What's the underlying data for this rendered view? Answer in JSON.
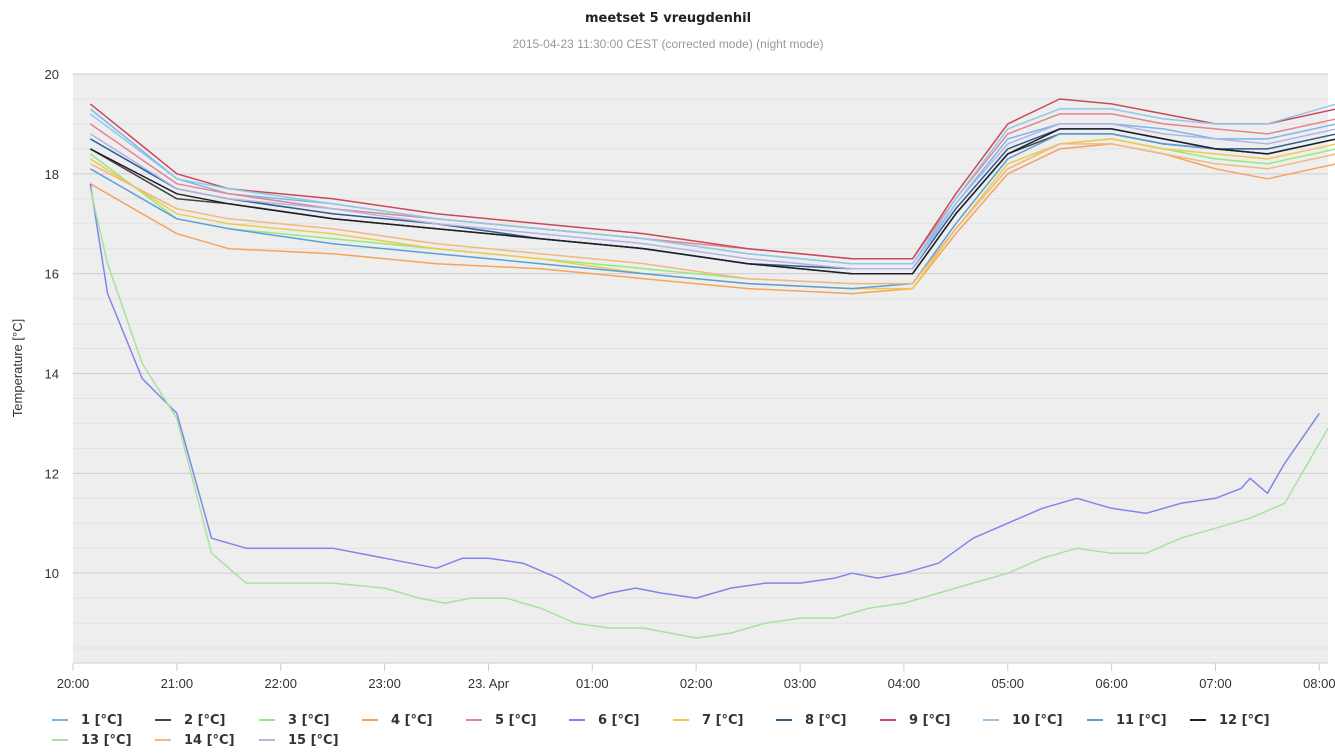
{
  "chart_data": {
    "type": "line",
    "title": "meetset 5 vreugdenhil",
    "subtitle": "2015-04-23 11:30:00 CEST (corrected mode) (night mode)",
    "ylabel": "Temperature [°C]",
    "xlabel": "",
    "ylim": [
      8.2,
      20
    ],
    "yticks": [
      10,
      12,
      14,
      16,
      18,
      20
    ],
    "xlim": [
      "2015-04-22T20:00",
      "2015-04-23T08:05"
    ],
    "xticks": [
      "2015-04-22T20:00",
      "2015-04-22T21:00",
      "2015-04-22T22:00",
      "2015-04-22T23:00",
      "2015-04-23T00:00",
      "2015-04-23T01:00",
      "2015-04-23T02:00",
      "2015-04-23T03:00",
      "2015-04-23T04:00",
      "2015-04-23T05:00",
      "2015-04-23T06:00",
      "2015-04-23T07:00",
      "2015-04-23T08:00"
    ],
    "xticklabels": [
      "20:00",
      "21:00",
      "22:00",
      "23:00",
      "23. Apr",
      "01:00",
      "02:00",
      "03:00",
      "04:00",
      "05:00",
      "06:00",
      "07:00",
      "08:00"
    ],
    "grid": true,
    "legend_position": "bottom",
    "series": [
      {
        "name": "1 [°C]",
        "color": "#7cb5ec",
        "x": [
          "2015-04-22T20:10",
          "2015-04-22T21:00",
          "2015-04-22T21:30",
          "2015-04-22T22:30",
          "2015-04-22T23:30",
          "2015-04-23T00:30",
          "2015-04-23T01:30",
          "2015-04-23T02:30",
          "2015-04-23T03:30",
          "2015-04-23T04:05",
          "2015-04-23T04:30",
          "2015-04-23T05:00",
          "2015-04-23T05:30",
          "2015-04-23T06:00",
          "2015-04-23T06:30",
          "2015-04-23T07:00",
          "2015-04-23T07:30",
          "2015-04-23T08:10"
        ],
        "y": [
          19.3,
          17.9,
          17.6,
          17.4,
          17.1,
          16.9,
          16.7,
          16.4,
          16.2,
          16.2,
          17.4,
          18.7,
          19.0,
          19.0,
          18.9,
          18.7,
          18.7,
          19.0
        ]
      },
      {
        "name": "2 [°C]",
        "color": "#434348",
        "x": [
          "2015-04-22T20:10",
          "2015-04-22T21:00",
          "2015-04-22T21:30",
          "2015-04-22T22:30",
          "2015-04-22T23:30",
          "2015-04-23T00:30",
          "2015-04-23T01:30",
          "2015-04-23T02:30",
          "2015-04-23T03:30",
          "2015-04-23T04:05",
          "2015-04-23T04:30",
          "2015-04-23T05:00",
          "2015-04-23T05:30",
          "2015-04-23T06:00",
          "2015-04-23T06:30",
          "2015-04-23T07:00",
          "2015-04-23T07:30",
          "2015-04-23T08:10"
        ],
        "y": [
          18.5,
          17.5,
          17.4,
          17.1,
          16.9,
          16.7,
          16.5,
          16.2,
          16.0,
          16.0,
          17.2,
          18.4,
          18.8,
          18.8,
          18.6,
          18.5,
          18.4,
          18.7
        ]
      },
      {
        "name": "3 [°C]",
        "color": "#90ed7d",
        "x": [
          "2015-04-22T20:10",
          "2015-04-22T21:00",
          "2015-04-22T21:30",
          "2015-04-22T22:30",
          "2015-04-22T23:30",
          "2015-04-23T00:30",
          "2015-04-23T01:30",
          "2015-04-23T02:30",
          "2015-04-23T03:30",
          "2015-04-23T04:05",
          "2015-04-23T04:30",
          "2015-04-23T05:00",
          "2015-04-23T05:30",
          "2015-04-23T06:00",
          "2015-04-23T06:30",
          "2015-04-23T07:00",
          "2015-04-23T07:30",
          "2015-04-23T08:10"
        ],
        "y": [
          18.4,
          17.1,
          16.9,
          16.7,
          16.5,
          16.3,
          16.1,
          15.9,
          15.8,
          15.8,
          16.9,
          18.1,
          18.6,
          18.7,
          18.5,
          18.3,
          18.2,
          18.5
        ]
      },
      {
        "name": "4 [°C]",
        "color": "#f7a35c",
        "x": [
          "2015-04-22T20:10",
          "2015-04-22T21:00",
          "2015-04-22T21:30",
          "2015-04-22T22:30",
          "2015-04-22T23:30",
          "2015-04-23T00:30",
          "2015-04-23T01:30",
          "2015-04-23T02:30",
          "2015-04-23T03:30",
          "2015-04-23T04:05",
          "2015-04-23T04:30",
          "2015-04-23T05:00",
          "2015-04-23T05:30",
          "2015-04-23T06:00",
          "2015-04-23T06:30",
          "2015-04-23T07:00",
          "2015-04-23T07:30",
          "2015-04-23T08:10"
        ],
        "y": [
          17.8,
          16.8,
          16.5,
          16.4,
          16.2,
          16.1,
          15.9,
          15.7,
          15.6,
          15.7,
          16.8,
          18.0,
          18.5,
          18.6,
          18.4,
          18.1,
          17.9,
          18.2
        ]
      },
      {
        "name": "5 [°C]",
        "color": "#e4848f",
        "x": [
          "2015-04-22T20:10",
          "2015-04-22T21:00",
          "2015-04-22T21:30",
          "2015-04-22T22:30",
          "2015-04-22T23:30",
          "2015-04-23T00:30",
          "2015-04-23T01:30",
          "2015-04-23T02:30",
          "2015-04-23T03:30",
          "2015-04-23T04:05",
          "2015-04-23T04:30",
          "2015-04-23T05:00",
          "2015-04-23T05:30",
          "2015-04-23T06:00",
          "2015-04-23T06:30",
          "2015-04-23T07:00",
          "2015-04-23T07:30",
          "2015-04-23T08:10"
        ],
        "y": [
          19.0,
          17.8,
          17.6,
          17.3,
          17.1,
          16.9,
          16.7,
          16.5,
          16.3,
          16.3,
          17.5,
          18.8,
          19.2,
          19.2,
          19.0,
          18.9,
          18.8,
          19.1
        ]
      },
      {
        "name": "6 [°C]",
        "color": "#8085e9",
        "x": [
          "2015-04-22T20:10",
          "2015-04-22T20:20",
          "2015-04-22T20:40",
          "2015-04-22T21:00",
          "2015-04-22T21:20",
          "2015-04-22T21:40",
          "2015-04-22T22:00",
          "2015-04-22T22:30",
          "2015-04-22T23:00",
          "2015-04-22T23:30",
          "2015-04-22T23:45",
          "2015-04-23T00:00",
          "2015-04-23T00:20",
          "2015-04-23T00:40",
          "2015-04-23T01:00",
          "2015-04-23T01:10",
          "2015-04-23T01:25",
          "2015-04-23T01:40",
          "2015-04-23T02:00",
          "2015-04-23T02:20",
          "2015-04-23T02:40",
          "2015-04-23T03:00",
          "2015-04-23T03:20",
          "2015-04-23T03:30",
          "2015-04-23T03:45",
          "2015-04-23T04:00",
          "2015-04-23T04:20",
          "2015-04-23T04:40",
          "2015-04-23T05:00",
          "2015-04-23T05:20",
          "2015-04-23T05:40",
          "2015-04-23T06:00",
          "2015-04-23T06:20",
          "2015-04-23T06:40",
          "2015-04-23T07:00",
          "2015-04-23T07:15",
          "2015-04-23T07:20",
          "2015-04-23T07:30",
          "2015-04-23T07:40",
          "2015-04-23T08:00"
        ],
        "y": [
          17.8,
          15.6,
          13.9,
          13.2,
          10.7,
          10.5,
          10.5,
          10.5,
          10.3,
          10.1,
          10.3,
          10.3,
          10.2,
          9.9,
          9.5,
          9.6,
          9.7,
          9.6,
          9.5,
          9.7,
          9.8,
          9.8,
          9.9,
          10.0,
          9.9,
          10.0,
          10.2,
          10.7,
          11.0,
          11.3,
          11.5,
          11.3,
          11.2,
          11.4,
          11.5,
          11.7,
          11.9,
          11.6,
          12.2,
          13.2
        ]
      },
      {
        "name": "7 [°C]",
        "color": "#f1c84e",
        "x": [
          "2015-04-22T20:10",
          "2015-04-22T21:00",
          "2015-04-22T21:30",
          "2015-04-22T22:30",
          "2015-04-22T23:30",
          "2015-04-23T00:30",
          "2015-04-23T01:30",
          "2015-04-23T02:30",
          "2015-04-23T03:30",
          "2015-04-23T04:05",
          "2015-04-23T04:30",
          "2015-04-23T05:00",
          "2015-04-23T05:30",
          "2015-04-23T06:00",
          "2015-04-23T06:30",
          "2015-04-23T07:00",
          "2015-04-23T07:30",
          "2015-04-23T08:10"
        ],
        "y": [
          18.3,
          17.2,
          17.0,
          16.8,
          16.5,
          16.3,
          16.0,
          15.8,
          15.7,
          15.7,
          16.9,
          18.2,
          18.6,
          18.7,
          18.5,
          18.4,
          18.3,
          18.6
        ]
      },
      {
        "name": "8 [°C]",
        "color": "#2b5d8c",
        "x": [
          "2015-04-22T20:10",
          "2015-04-22T21:00",
          "2015-04-22T21:30",
          "2015-04-22T22:30",
          "2015-04-22T23:30",
          "2015-04-23T00:30",
          "2015-04-23T01:30",
          "2015-04-23T02:30",
          "2015-04-23T03:30",
          "2015-04-23T04:05",
          "2015-04-23T04:30",
          "2015-04-23T05:00",
          "2015-04-23T05:30",
          "2015-04-23T06:00",
          "2015-04-23T06:30",
          "2015-04-23T07:00",
          "2015-04-23T07:30",
          "2015-04-23T08:10"
        ],
        "y": [
          18.7,
          17.7,
          17.5,
          17.2,
          17.0,
          16.7,
          16.5,
          16.2,
          16.1,
          16.1,
          17.3,
          18.5,
          18.9,
          18.9,
          18.7,
          18.5,
          18.5,
          18.8
        ]
      },
      {
        "name": "9 [°C]",
        "color": "#c9495a",
        "x": [
          "2015-04-22T20:10",
          "2015-04-22T21:00",
          "2015-04-22T21:30",
          "2015-04-22T22:30",
          "2015-04-22T23:30",
          "2015-04-23T00:30",
          "2015-04-23T01:30",
          "2015-04-23T02:30",
          "2015-04-23T03:30",
          "2015-04-23T04:05",
          "2015-04-23T04:30",
          "2015-04-23T05:00",
          "2015-04-23T05:30",
          "2015-04-23T06:00",
          "2015-04-23T06:30",
          "2015-04-23T07:00",
          "2015-04-23T07:30",
          "2015-04-23T08:10"
        ],
        "y": [
          19.4,
          18.0,
          17.7,
          17.5,
          17.2,
          17.0,
          16.8,
          16.5,
          16.3,
          16.3,
          17.6,
          19.0,
          19.5,
          19.4,
          19.2,
          19.0,
          19.0,
          19.3
        ]
      },
      {
        "name": "10 [°C]",
        "color": "#91c8e8",
        "x": [
          "2015-04-22T20:10",
          "2015-04-22T21:00",
          "2015-04-22T21:30",
          "2015-04-22T22:30",
          "2015-04-22T23:30",
          "2015-04-23T00:30",
          "2015-04-23T01:30",
          "2015-04-23T02:30",
          "2015-04-23T03:30",
          "2015-04-23T04:05",
          "2015-04-23T04:30",
          "2015-04-23T05:00",
          "2015-04-23T05:30",
          "2015-04-23T06:00",
          "2015-04-23T06:30",
          "2015-04-23T07:00",
          "2015-04-23T07:30",
          "2015-04-23T08:10"
        ],
        "y": [
          19.2,
          17.9,
          17.7,
          17.4,
          17.1,
          16.9,
          16.7,
          16.4,
          16.2,
          16.2,
          17.5,
          18.9,
          19.3,
          19.3,
          19.1,
          19.0,
          19.0,
          19.4
        ]
      },
      {
        "name": "11 [°C]",
        "color": "#5aa0d6",
        "x": [
          "2015-04-22T20:10",
          "2015-04-22T21:00",
          "2015-04-22T21:30",
          "2015-04-22T22:30",
          "2015-04-22T23:30",
          "2015-04-23T00:30",
          "2015-04-23T01:30",
          "2015-04-23T02:30",
          "2015-04-23T03:30",
          "2015-04-23T04:05",
          "2015-04-23T04:30",
          "2015-04-23T05:00",
          "2015-04-23T05:30",
          "2015-04-23T06:00",
          "2015-04-23T06:30",
          "2015-04-23T07:00",
          "2015-04-23T07:30",
          "2015-04-23T08:10"
        ],
        "y": [
          18.1,
          17.1,
          16.9,
          16.6,
          16.4,
          16.2,
          16.0,
          15.8,
          15.7,
          15.8,
          17.0,
          18.3,
          18.8,
          18.8,
          18.6,
          18.5,
          18.4,
          18.7
        ]
      },
      {
        "name": "12 [°C]",
        "color": "#1f1f2b",
        "x": [
          "2015-04-22T20:10",
          "2015-04-22T21:00",
          "2015-04-22T21:30",
          "2015-04-22T22:30",
          "2015-04-22T23:30",
          "2015-04-23T00:30",
          "2015-04-23T01:30",
          "2015-04-23T02:30",
          "2015-04-23T03:30",
          "2015-04-23T04:05",
          "2015-04-23T04:30",
          "2015-04-23T05:00",
          "2015-04-23T05:30",
          "2015-04-23T06:00",
          "2015-04-23T06:30",
          "2015-04-23T07:00",
          "2015-04-23T07:30",
          "2015-04-23T08:10"
        ],
        "y": [
          18.5,
          17.6,
          17.4,
          17.1,
          16.9,
          16.7,
          16.5,
          16.2,
          16.0,
          16.0,
          17.2,
          18.4,
          18.9,
          18.9,
          18.7,
          18.5,
          18.4,
          18.7
        ]
      },
      {
        "name": "13 [°C]",
        "color": "#a6e3a0",
        "x": [
          "2015-04-22T20:10",
          "2015-04-22T20:20",
          "2015-04-22T20:40",
          "2015-04-22T21:00",
          "2015-04-22T21:20",
          "2015-04-22T21:40",
          "2015-04-22T22:00",
          "2015-04-22T22:30",
          "2015-04-22T23:00",
          "2015-04-22T23:20",
          "2015-04-22T23:35",
          "2015-04-22T23:50",
          "2015-04-23T00:10",
          "2015-04-23T00:30",
          "2015-04-23T00:50",
          "2015-04-23T01:10",
          "2015-04-23T01:30",
          "2015-04-23T01:45",
          "2015-04-23T02:00",
          "2015-04-23T02:20",
          "2015-04-23T02:40",
          "2015-04-23T03:00",
          "2015-04-23T03:20",
          "2015-04-23T03:40",
          "2015-04-23T04:00",
          "2015-04-23T04:20",
          "2015-04-23T04:40",
          "2015-04-23T05:00",
          "2015-04-23T05:20",
          "2015-04-23T05:40",
          "2015-04-23T06:00",
          "2015-04-23T06:20",
          "2015-04-23T06:40",
          "2015-04-23T07:00",
          "2015-04-23T07:20",
          "2015-04-23T07:40",
          "2015-04-23T08:00",
          "2015-04-23T08:05"
        ],
        "y": [
          17.7,
          16.2,
          14.2,
          13.1,
          10.4,
          9.8,
          9.8,
          9.8,
          9.7,
          9.5,
          9.4,
          9.5,
          9.5,
          9.3,
          9.0,
          8.9,
          8.9,
          8.8,
          8.7,
          8.8,
          9.0,
          9.1,
          9.1,
          9.3,
          9.4,
          9.6,
          9.8,
          10.0,
          10.3,
          10.5,
          10.4,
          10.4,
          10.7,
          10.9,
          11.1,
          11.4,
          12.6,
          12.9
        ]
      },
      {
        "name": "14 [°C]",
        "color": "#f2b882",
        "x": [
          "2015-04-22T20:10",
          "2015-04-22T21:00",
          "2015-04-22T21:30",
          "2015-04-22T22:30",
          "2015-04-22T23:30",
          "2015-04-23T00:30",
          "2015-04-23T01:30",
          "2015-04-23T02:30",
          "2015-04-23T03:30",
          "2015-04-23T04:05",
          "2015-04-23T04:30",
          "2015-04-23T05:00",
          "2015-04-23T05:30",
          "2015-04-23T06:00",
          "2015-04-23T06:30",
          "2015-04-23T07:00",
          "2015-04-23T07:30",
          "2015-04-23T08:10"
        ],
        "y": [
          18.2,
          17.3,
          17.1,
          16.9,
          16.6,
          16.4,
          16.2,
          15.9,
          15.8,
          15.8,
          16.9,
          18.1,
          18.6,
          18.6,
          18.4,
          18.2,
          18.1,
          18.4
        ]
      },
      {
        "name": "15 [°C]",
        "color": "#b0b4e8",
        "x": [
          "2015-04-22T20:10",
          "2015-04-22T21:00",
          "2015-04-22T21:30",
          "2015-04-22T22:30",
          "2015-04-22T23:30",
          "2015-04-23T00:30",
          "2015-04-23T01:30",
          "2015-04-23T02:30",
          "2015-04-23T03:30",
          "2015-04-23T04:05",
          "2015-04-23T04:30",
          "2015-04-23T05:00",
          "2015-04-23T05:30",
          "2015-04-23T06:00",
          "2015-04-23T06:30",
          "2015-04-23T07:00",
          "2015-04-23T07:30",
          "2015-04-23T08:10"
        ],
        "y": [
          18.8,
          17.7,
          17.5,
          17.3,
          17.0,
          16.8,
          16.6,
          16.3,
          16.1,
          16.1,
          17.4,
          18.6,
          19.0,
          19.0,
          18.8,
          18.7,
          18.6,
          18.9
        ]
      }
    ]
  }
}
